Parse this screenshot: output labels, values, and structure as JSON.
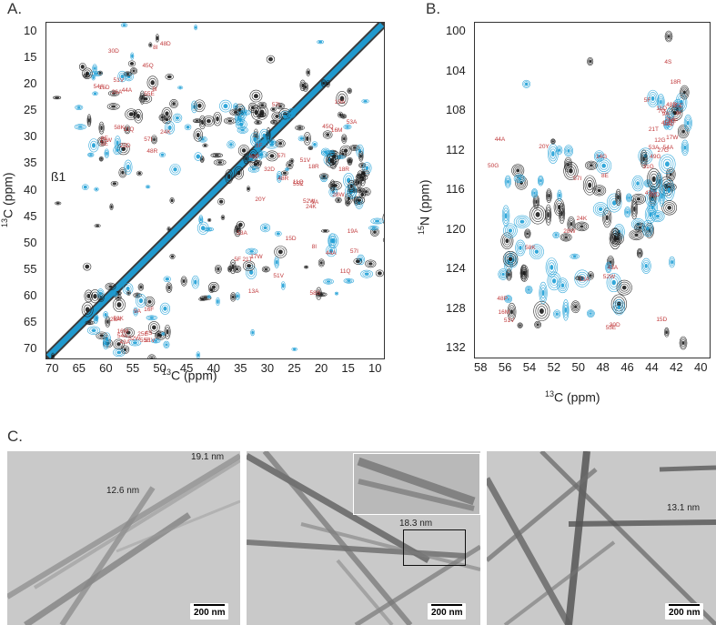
{
  "panels": {
    "a_letter": "A.",
    "b_letter": "B.",
    "c_letter": "C."
  },
  "panel_a": {
    "xlabel_main": "13",
    "xlabel_rest": "C (ppm)",
    "ylabel_main": "13",
    "ylabel_rest": "C (ppm)",
    "xticks": [
      "70",
      "65",
      "60",
      "55",
      "50",
      "45",
      "40",
      "35",
      "30",
      "25",
      "20",
      "15",
      "10"
    ],
    "yticks": [
      "10",
      "15",
      "20",
      "25",
      "30",
      "35",
      "40",
      "45",
      "50",
      "55",
      "60",
      "65",
      "70"
    ],
    "beta_label": "ß1",
    "peaks_upper": [
      "8I",
      "57I",
      "57I",
      "51V",
      "54A",
      "53A",
      "44A",
      "19A",
      "26A",
      "9A",
      "58K",
      "28W",
      "55E",
      "52W",
      "8E",
      "16M",
      "17W",
      "48R",
      "11Q",
      "20Y",
      "24K",
      "45Q",
      "15D",
      "3F",
      "30D",
      "32D",
      "22D",
      "48P",
      "48D",
      "18R",
      "48R",
      "55E",
      "8E",
      "11Q",
      "51V",
      "57I",
      "45Q",
      "24K",
      "8I",
      "18R"
    ],
    "peaks_lower": [
      "19A",
      "26A",
      "44A",
      "43A",
      "53A",
      "54A",
      "13A",
      "9A",
      "15D",
      "59K",
      "11Q",
      "55E",
      "5F",
      "16F",
      "8I",
      "25E",
      "51V",
      "16M",
      "17W",
      "52W",
      "57I",
      "51V",
      "58S",
      "4S",
      "21T"
    ]
  },
  "panel_b": {
    "xlabel_main": "13",
    "xlabel_rest": "C (ppm)",
    "ylabel_main": "15",
    "ylabel_rest": "N (ppm)",
    "xticks": [
      "58",
      "56",
      "54",
      "52",
      "50",
      "48",
      "46",
      "44",
      "42",
      "40"
    ],
    "yticks": [
      "100",
      "104",
      "108",
      "112",
      "116",
      "120",
      "124",
      "128",
      "132"
    ],
    "peaks": [
      "50G",
      "27G",
      "14G",
      "49G",
      "47G",
      "4S",
      "55E",
      "21T",
      "28W",
      "25E",
      "24K",
      "45Q",
      "15D",
      "12G",
      "51V",
      "7G",
      "31G",
      "26A",
      "13A",
      "54A",
      "20Y",
      "17W",
      "8E",
      "22D",
      "44A",
      "9A",
      "43A",
      "53A",
      "57I",
      "5F",
      "58K",
      "8I",
      "32D",
      "48R",
      "16M",
      "10F",
      "30D",
      "11Q",
      "52W",
      "18R",
      "48P"
    ]
  },
  "panel_c": {
    "images": [
      {
        "measurements": [
          "19.1 nm",
          "12.6 nm"
        ],
        "scale": "200 nm"
      },
      {
        "measurements": [
          "18.3 nm"
        ],
        "scale": "200 nm"
      },
      {
        "measurements": [
          "13.1 nm"
        ],
        "scale": "200 nm"
      }
    ]
  },
  "colors": {
    "black_spectrum": "#1a1a1a",
    "blue_spectrum": "#1e9fd6",
    "peak_label": "#c0393b",
    "em_background": "#c9c9c9"
  }
}
